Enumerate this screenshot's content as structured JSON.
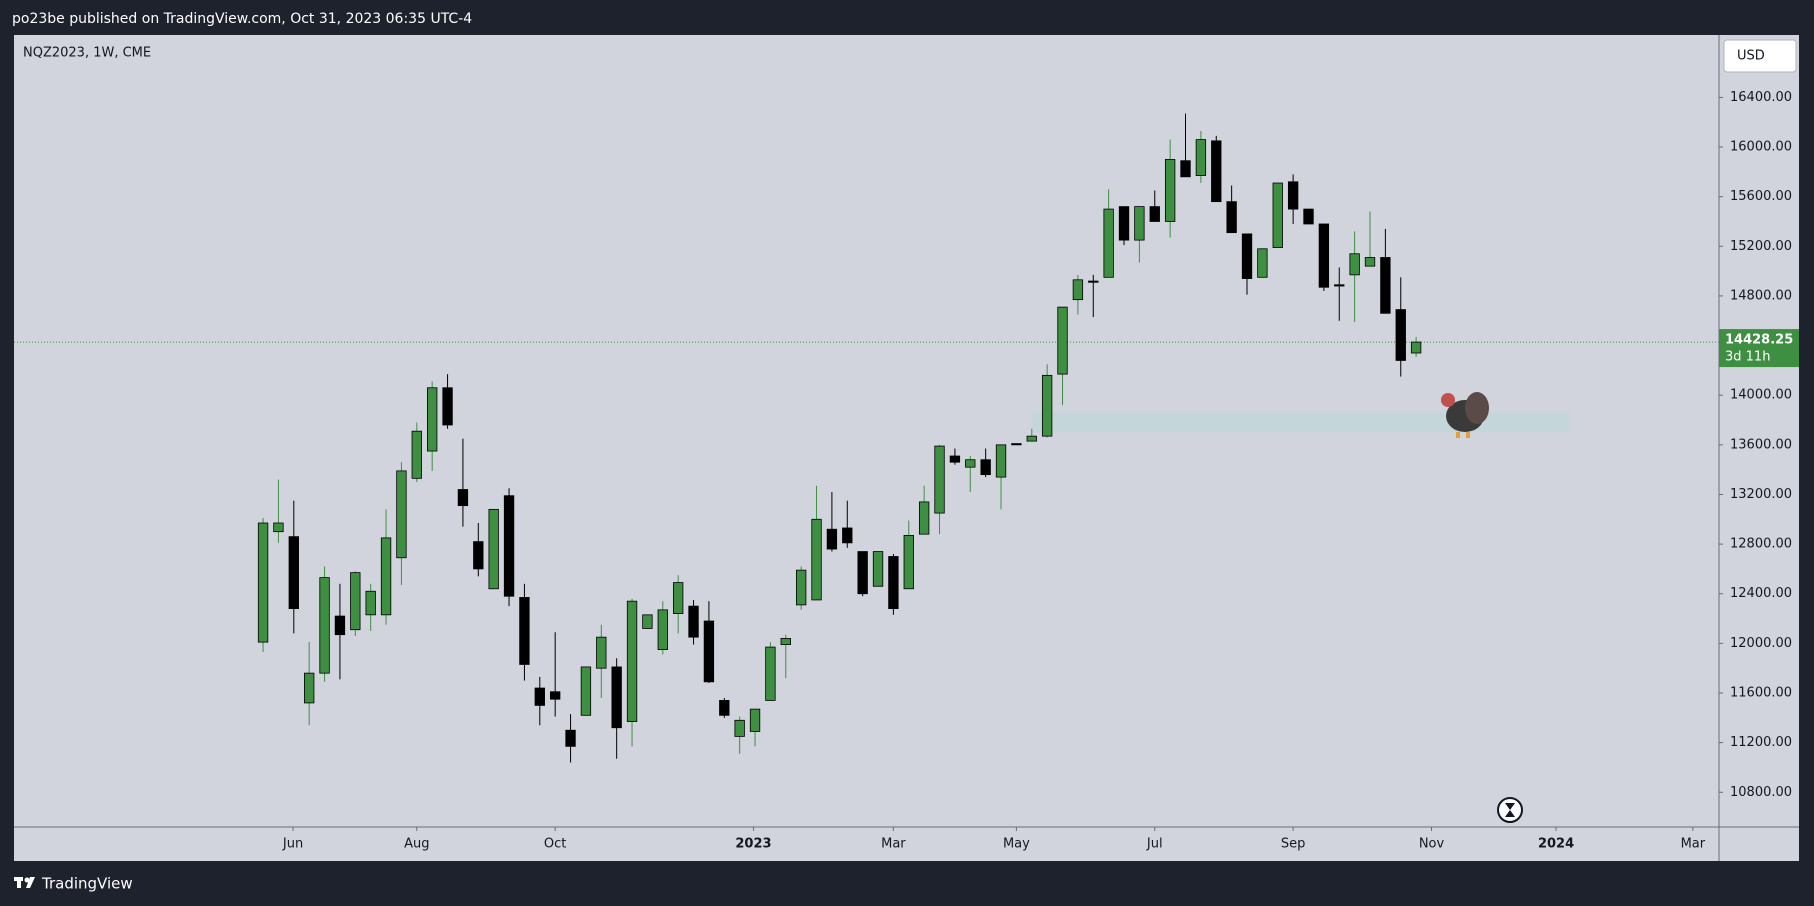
{
  "header": {
    "text": "po23be published on TradingView.com, Oct 31, 2023 06:35 UTC-4"
  },
  "footer": {
    "brand": "TradingView"
  },
  "chart_data": {
    "type": "candlestick",
    "title": "NQZ2023, 1W, CME",
    "currency": "USD",
    "x": [
      0,
      1,
      2,
      3,
      4,
      5,
      6,
      7,
      8,
      9,
      10,
      11,
      12,
      13,
      14,
      15,
      16,
      17,
      18,
      19,
      20,
      21,
      22,
      23,
      24,
      25,
      26,
      27,
      28,
      29,
      30,
      31,
      32,
      33,
      34,
      35,
      36,
      37,
      38,
      39,
      40,
      41,
      42,
      43,
      44,
      45,
      46,
      47,
      48,
      49,
      50,
      51,
      52,
      53,
      54,
      55,
      56,
      57,
      58,
      59,
      60,
      61,
      62,
      63,
      64,
      65,
      66,
      67,
      68,
      69,
      70,
      71,
      72,
      73,
      74,
      75
    ],
    "open": [
      12010,
      12900,
      12860,
      11520,
      11760,
      12220,
      12110,
      12230,
      12230,
      12690,
      13330,
      13550,
      14060,
      13240,
      12820,
      12440,
      13190,
      12370,
      11640,
      11610,
      11300,
      11420,
      11800,
      11810,
      11370,
      12120,
      11950,
      12240,
      12300,
      12180,
      11540,
      11250,
      11290,
      11540,
      11990,
      12310,
      12350,
      12920,
      12930,
      12740,
      12460,
      12700,
      12440,
      12880,
      13050,
      13510,
      13420,
      13480,
      13340,
      13610,
      13630,
      13670,
      14170,
      14770,
      14920,
      14950,
      15520,
      15250,
      15520,
      15400,
      15890,
      15770,
      16050,
      15560,
      15300,
      14950,
      15190,
      15720,
      15500,
      15380,
      14890,
      14970,
      15040,
      15110,
      14690,
      14340
    ],
    "high": [
      13010,
      13320,
      13150,
      12010,
      12620,
      12480,
      12580,
      12480,
      13080,
      13460,
      13780,
      14110,
      14170,
      13650,
      12970,
      13080,
      13250,
      12480,
      11730,
      12090,
      11430,
      11810,
      12150,
      11880,
      12360,
      12230,
      12340,
      12550,
      12350,
      12340,
      11560,
      11410,
      11470,
      12010,
      12070,
      12620,
      13270,
      13220,
      13150,
      12740,
      12740,
      12720,
      12990,
      13270,
      13600,
      13570,
      13510,
      13570,
      13600,
      13610,
      13730,
      14250,
      14710,
      14970,
      14970,
      15660,
      15520,
      15520,
      15650,
      16060,
      16270,
      16130,
      16090,
      15690,
      15300,
      15180,
      15710,
      15780,
      15500,
      15380,
      15030,
      15320,
      15480,
      15340,
      14950,
      14470
    ],
    "low": [
      11930,
      12810,
      12080,
      11340,
      11690,
      11710,
      12060,
      12100,
      12150,
      12470,
      13300,
      13390,
      13730,
      12940,
      12540,
      12440,
      12300,
      11700,
      11340,
      11410,
      11040,
      11420,
      11560,
      11070,
      11170,
      12120,
      11910,
      12080,
      11990,
      11680,
      11400,
      11110,
      11170,
      11540,
      11720,
      12270,
      12350,
      12740,
      12770,
      12380,
      12460,
      12230,
      12440,
      12880,
      12880,
      13440,
      13220,
      13340,
      13080,
      13600,
      13630,
      13660,
      13920,
      14650,
      14630,
      14950,
      15210,
      15070,
      15400,
      15270,
      15760,
      15710,
      15560,
      15310,
      14810,
      14950,
      15190,
      15380,
      15380,
      14840,
      14600,
      14590,
      15040,
      14660,
      14150,
      14310
    ],
    "close": [
      12970,
      12970,
      12280,
      11760,
      12530,
      12070,
      12570,
      12420,
      12850,
      13390,
      13710,
      14060,
      13760,
      13110,
      12600,
      13080,
      12380,
      11830,
      11500,
      11550,
      11170,
      11810,
      12050,
      11320,
      12340,
      12230,
      12270,
      12490,
      12050,
      11690,
      11420,
      11380,
      11470,
      11970,
      12040,
      12590,
      13000,
      12760,
      12810,
      12400,
      12740,
      12280,
      12870,
      13140,
      13590,
      13460,
      13480,
      13360,
      13600,
      13600,
      13670,
      14160,
      14710,
      14930,
      14910,
      15500,
      15250,
      15520,
      15400,
      15900,
      15760,
      16060,
      15560,
      15310,
      14940,
      15180,
      15710,
      15500,
      15380,
      14870,
      14880,
      15140,
      15110,
      14660,
      14280,
      14428.25
    ],
    "up_color": "#3f8f43",
    "down_color": "#000000",
    "xlim": [
      -16.2,
      94.7
    ],
    "xticks": [
      {
        "value": 1.95,
        "label": "Jun"
      },
      {
        "value": 10,
        "label": "Aug"
      },
      {
        "value": 19,
        "label": "Oct"
      },
      {
        "value": 31.9,
        "label": "2023"
      },
      {
        "value": 41,
        "label": "Mar"
      },
      {
        "value": 49,
        "label": "May"
      },
      {
        "value": 58,
        "label": "Jul"
      },
      {
        "value": 67,
        "label": "Sep"
      },
      {
        "value": 76,
        "label": "Nov"
      },
      {
        "value": 84.1,
        "label": "2024"
      },
      {
        "value": 93,
        "label": "Mar"
      }
    ],
    "ylim": [
      10520,
      16903
    ],
    "yticks": [
      {
        "value": 10800,
        "label": "10800.00"
      },
      {
        "value": 11200,
        "label": "11200.00"
      },
      {
        "value": 11600,
        "label": "11600.00"
      },
      {
        "value": 12000,
        "label": "12000.00"
      },
      {
        "value": 12400,
        "label": "12400.00"
      },
      {
        "value": 12800,
        "label": "12800.00"
      },
      {
        "value": 13200,
        "label": "13200.00"
      },
      {
        "value": 13600,
        "label": "13600.00"
      },
      {
        "value": 14000,
        "label": "14000.00"
      },
      {
        "value": 14400,
        "label": "14400.00"
      },
      {
        "value": 14800,
        "label": "14800.00"
      },
      {
        "value": 15200,
        "label": "15200.00"
      },
      {
        "value": 15600,
        "label": "15600.00"
      },
      {
        "value": 16000,
        "label": "16000.00"
      },
      {
        "value": 16400,
        "label": "16400.00"
      }
    ],
    "last_price": 14428.25,
    "countdown": "3d 11h",
    "zone": {
      "x": [
        50,
        85
      ],
      "y": [
        13700,
        13860
      ],
      "color": "#c2d6d9"
    }
  }
}
